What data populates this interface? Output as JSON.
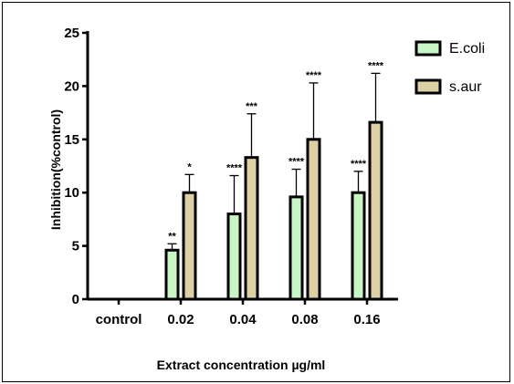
{
  "chart_data": {
    "type": "bar",
    "xlabel": "Extract concentration µg/ml",
    "ylabel": "Inhibition(%control)",
    "ylim": [
      0,
      25
    ],
    "yticks": [
      0,
      5,
      10,
      15,
      20,
      25
    ],
    "categories": [
      "control",
      "0.02",
      "0.04",
      "0.08",
      "0.16"
    ],
    "legend_position": "top-right",
    "series": [
      {
        "name": "E.coli",
        "color": "#c8f7c5",
        "values": [
          0,
          4.6,
          8.0,
          9.6,
          10.0
        ],
        "errors": [
          0,
          0.6,
          3.6,
          2.6,
          2.0
        ],
        "significance": [
          "",
          "**",
          "****",
          "****",
          "****"
        ]
      },
      {
        "name": "s.aur",
        "color": "#ddd0a5",
        "values": [
          0,
          10.0,
          13.3,
          15.0,
          16.6
        ],
        "errors": [
          0,
          1.7,
          4.1,
          5.3,
          4.6
        ],
        "significance": [
          "",
          "*",
          "***",
          "****",
          "****"
        ]
      }
    ]
  }
}
